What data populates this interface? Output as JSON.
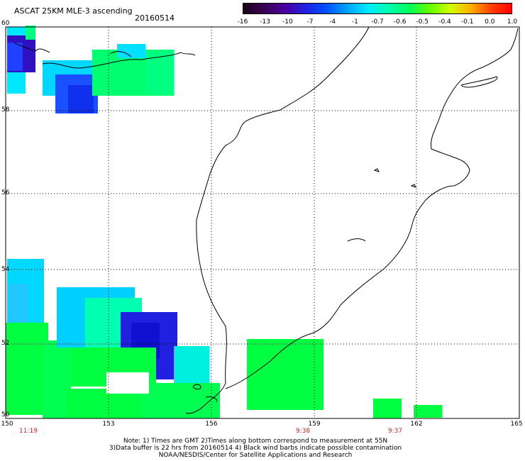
{
  "header": {
    "title": "ASCAT 25KM MLE-3 ascending",
    "date": "20160514"
  },
  "colorbar": {
    "labels": [
      "-16",
      "-13",
      "-10",
      "-7",
      "-4",
      "-1",
      "-0.7",
      "-0.6",
      "-0.5",
      "-0.4",
      "-0.1",
      "0.0",
      "1.0"
    ],
    "colors": [
      "#1a001a",
      "#3a0050",
      "#4b00a0",
      "#2020e0",
      "#0050ff",
      "#00a0ff",
      "#00e8ff",
      "#00ffb0",
      "#00ff60",
      "#60ff00",
      "#d0ff00",
      "#ffb000",
      "#ff4000",
      "#ff0000"
    ]
  },
  "axes": {
    "lat_labels": [
      "60",
      "58",
      "56",
      "54",
      "52",
      "50"
    ],
    "lon_labels": [
      "150",
      "153",
      "156",
      "159",
      "162",
      "165"
    ],
    "time_labels": [
      {
        "lon": 150,
        "time": "11:19"
      },
      {
        "lon": 158.8,
        "time": "9:38"
      },
      {
        "lon": 161.5,
        "time": "9:37"
      }
    ]
  },
  "notes": {
    "line1": "Note: 1) Times are GMT 2)Times along bottom correspond to measurement at 55N",
    "line2": "3)Data buffer is 22 hrs from 20160514 4) Black wind barbs indicate possible contamination",
    "line3": "NOAA/NESDIS/Center for Satellite Applications and Research"
  },
  "data_regions": [
    {
      "name": "nw-cyan",
      "color": "#00e8ff"
    },
    {
      "name": "nw-blue",
      "color": "#2060ff"
    },
    {
      "name": "nw-violet",
      "color": "#4020c0"
    },
    {
      "name": "north-green",
      "color": "#00ff60"
    },
    {
      "name": "south-green",
      "color": "#00ff40"
    },
    {
      "name": "south-cyan",
      "color": "#00d8ff"
    },
    {
      "name": "south-blue",
      "color": "#1010e0"
    }
  ]
}
